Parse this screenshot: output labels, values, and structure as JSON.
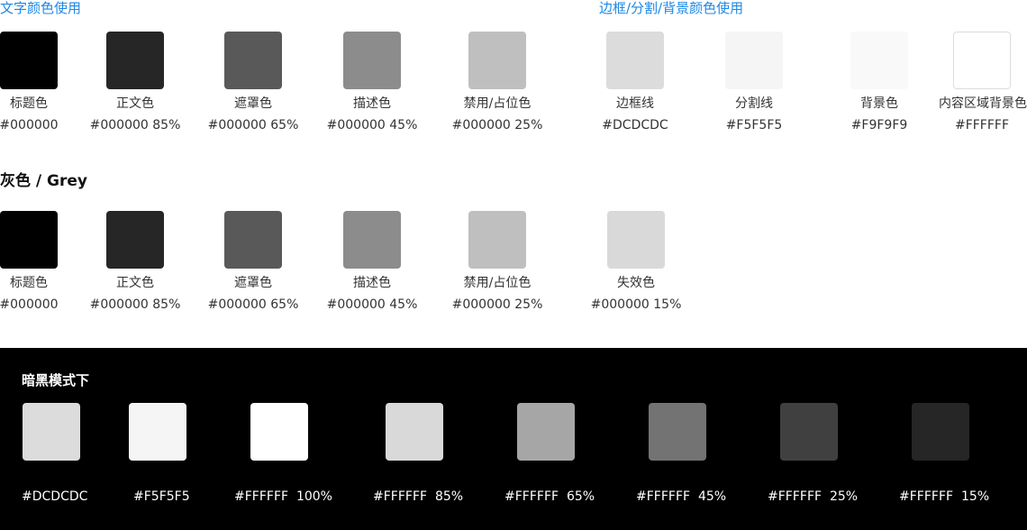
{
  "text_colors": {
    "title": "文字颜色使用",
    "items": [
      {
        "label": "标题色",
        "hex": "#000000",
        "color": "#000000"
      },
      {
        "label": "正文色",
        "hex": "#000000 85%",
        "color": "#262626"
      },
      {
        "label": "遮罩色",
        "hex": "#000000 65%",
        "color": "#595959"
      },
      {
        "label": "描述色",
        "hex": "#000000 45%",
        "color": "#8c8c8c"
      },
      {
        "label": "禁用/占位色",
        "hex": "#000000 25%",
        "color": "#bfbfbf"
      }
    ]
  },
  "border_colors": {
    "title": "边框/分割/背景颜色使用",
    "items": [
      {
        "label": "边框线",
        "hex": "#DCDCDC",
        "color": "#dcdcdc"
      },
      {
        "label": "分割线",
        "hex": "#F5F5F5",
        "color": "#f5f5f5"
      },
      {
        "label": "背景色",
        "hex": "#F9F9F9",
        "color": "#f9f9f9"
      },
      {
        "label": "内容区域背景色",
        "hex": "#FFFFFF",
        "color": "#ffffff"
      }
    ]
  },
  "grey": {
    "title": "灰色 / Grey",
    "items": [
      {
        "label": "标题色",
        "hex": "#000000",
        "color": "#000000"
      },
      {
        "label": "正文色",
        "hex": "#000000 85%",
        "color": "#262626"
      },
      {
        "label": "遮罩色",
        "hex": "#000000 65%",
        "color": "#595959"
      },
      {
        "label": "描述色",
        "hex": "#000000 45%",
        "color": "#8c8c8c"
      },
      {
        "label": "禁用/占位色",
        "hex": "#000000 25%",
        "color": "#bfbfbf"
      },
      {
        "label": "失效色",
        "hex": "#000000 15%",
        "color": "#d9d9d9"
      }
    ]
  },
  "dark_mode": {
    "title": "暗黑模式下",
    "items": [
      {
        "hex": "#DCDCDC",
        "color": "#dcdcdc"
      },
      {
        "hex": "#F5F5F5",
        "color": "#f5f5f5"
      },
      {
        "hex": "#FFFFFF  100%",
        "color": "#ffffff"
      },
      {
        "hex": "#FFFFFF  85%",
        "color": "#d9d9d9"
      },
      {
        "hex": "#FFFFFF  65%",
        "color": "#a6a6a6"
      },
      {
        "hex": "#FFFFFF  45%",
        "color": "#737373"
      },
      {
        "hex": "#FFFFFF  25%",
        "color": "#404040"
      },
      {
        "hex": "#FFFFFF  15%",
        "color": "#262626"
      }
    ]
  }
}
